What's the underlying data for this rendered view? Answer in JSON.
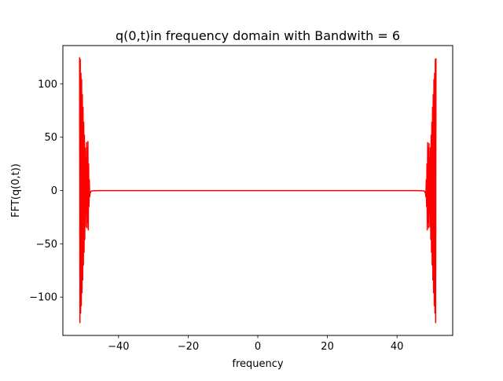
{
  "chart_data": {
    "type": "line",
    "title": "q(0,t)in frequency domain with Bandwith = 6",
    "xlabel": "frequency",
    "ylabel": "FFT(q(0,t))",
    "xlim": [
      -56.0,
      56.0
    ],
    "ylim": [
      -136.0,
      136.0
    ],
    "xticks": [
      -40,
      -20,
      0,
      20,
      40
    ],
    "xtick_labels": [
      "−40",
      "−20",
      "0",
      "20",
      "40"
    ],
    "yticks": [
      -100,
      -50,
      0,
      50,
      100
    ],
    "ytick_labels": [
      "−100",
      "−50",
      "0",
      "50",
      "100"
    ],
    "grid": false,
    "series": [
      {
        "color": "#ff0000",
        "x": [
          -51.2,
          -51.1,
          -51.0,
          -50.9,
          -50.8,
          -50.7,
          -50.6,
          -50.5,
          -50.4,
          -50.3,
          -50.2,
          -50.1,
          -50.0,
          -49.9,
          -49.8,
          -49.7,
          -49.6,
          -49.5,
          -49.4,
          -49.3,
          -49.2,
          -49.1,
          -49.0,
          -48.9,
          -48.8,
          -48.7,
          -48.6,
          -48.5,
          -48.4,
          -48.3,
          -48.2,
          -48.1,
          -48.0,
          -47.8,
          -47.5,
          -47.0,
          -45.0,
          -30.0,
          0.0,
          30.0,
          45.0,
          47.0,
          47.5,
          47.8,
          48.0,
          48.1,
          48.2,
          48.3,
          48.4,
          48.5,
          48.6,
          48.7,
          48.8,
          48.9,
          49.0,
          49.1,
          49.2,
          49.3,
          49.4,
          49.5,
          49.6,
          49.7,
          49.8,
          49.9,
          50.0,
          50.1,
          50.2,
          50.3,
          50.4,
          50.5,
          50.6,
          50.7,
          50.8,
          50.9,
          51.0,
          51.1,
          51.2
        ],
        "y": [
          125,
          -124,
          123,
          -115,
          110,
          -108,
          104,
          -96,
          90,
          -84,
          78,
          -70,
          64,
          -58,
          52,
          -46,
          40,
          -34,
          30,
          -22,
          45,
          -35,
          40,
          -30,
          46,
          -37,
          25,
          -15,
          10,
          -6,
          -3,
          -2,
          -1,
          -0.5,
          -0.3,
          -0.2,
          -0.1,
          -0.1,
          -0.1,
          -0.1,
          -0.1,
          -0.2,
          -0.3,
          -0.5,
          -1,
          -2,
          -3,
          -6,
          10,
          -15,
          25,
          -37,
          45,
          -30,
          40,
          -35,
          44,
          -22,
          30,
          -34,
          40,
          -46,
          52,
          -58,
          64,
          -70,
          78,
          -84,
          90,
          -96,
          104,
          -108,
          110,
          -115,
          123,
          -124,
          124
        ]
      }
    ]
  }
}
